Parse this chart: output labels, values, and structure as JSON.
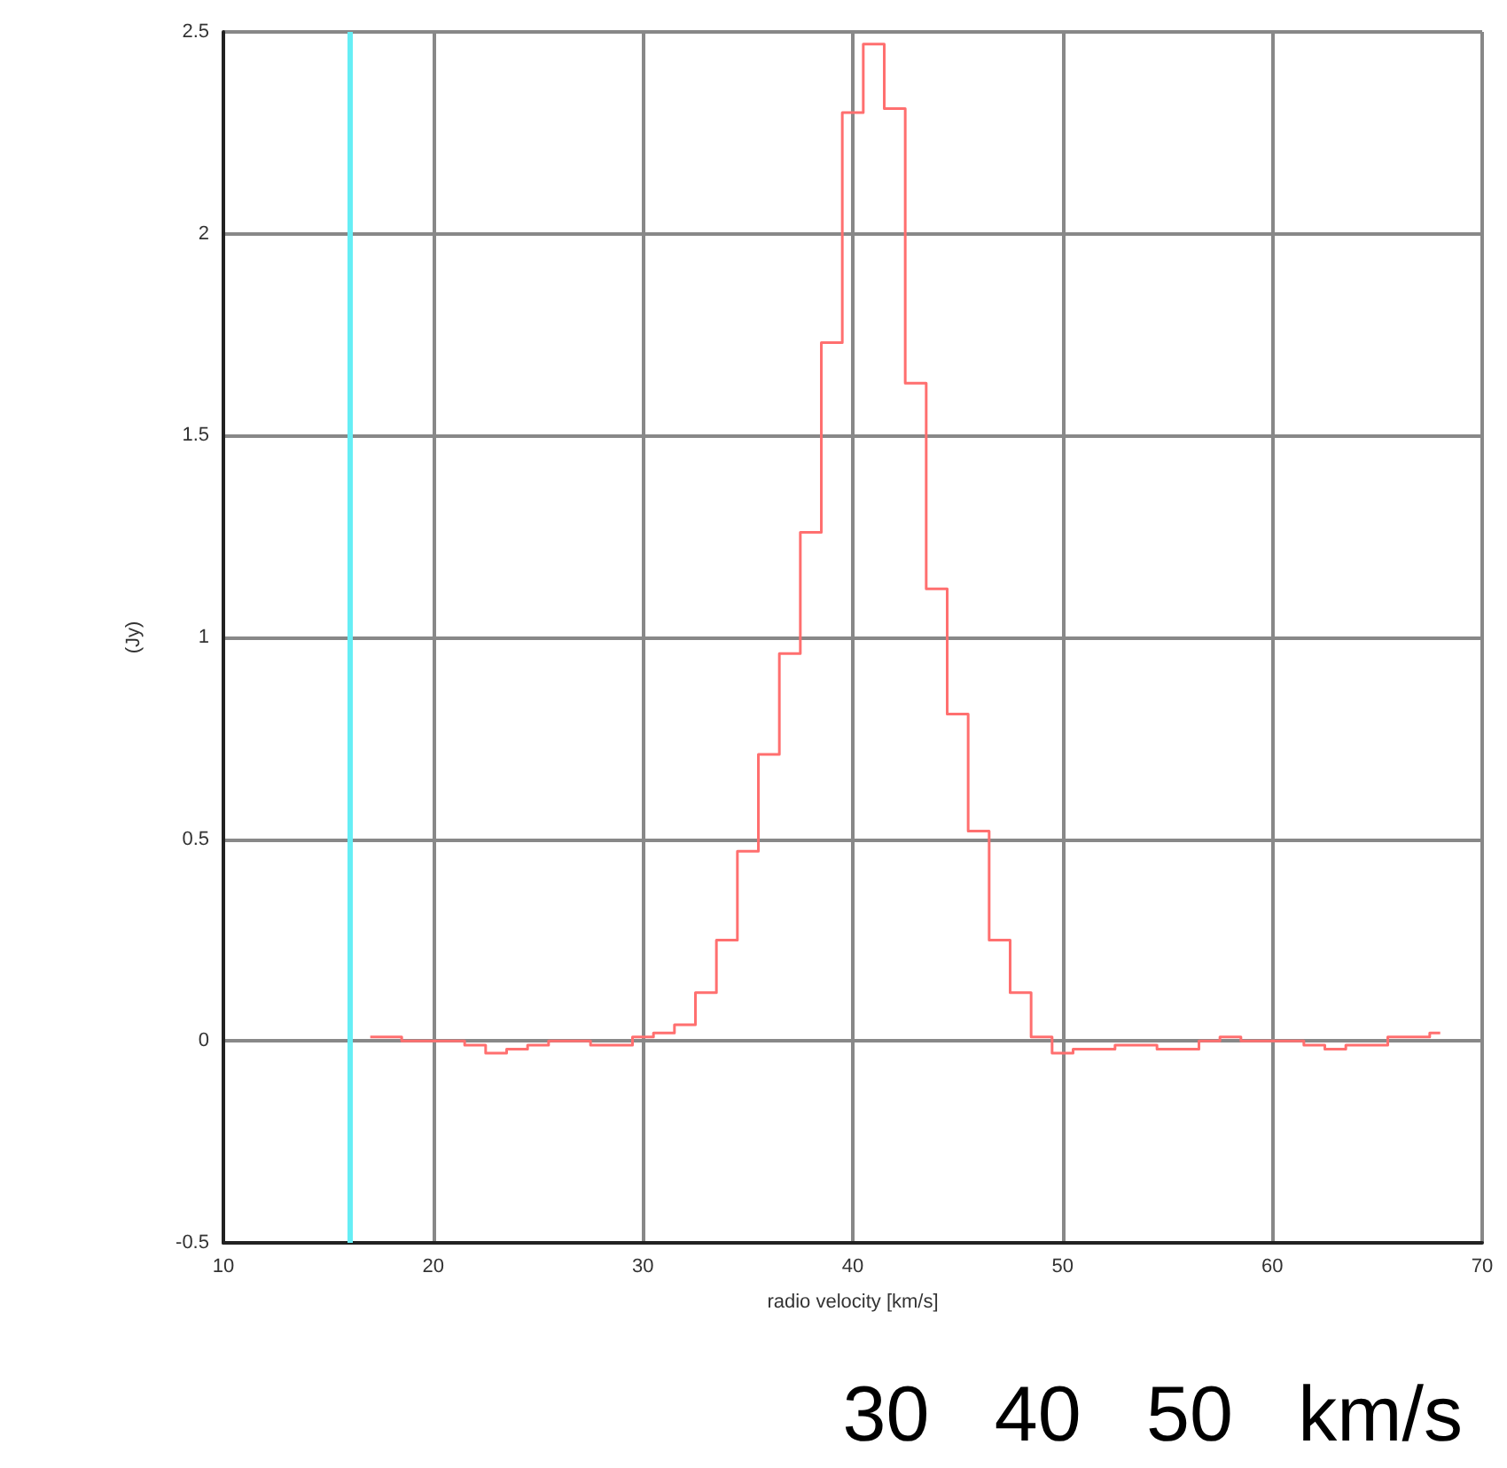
{
  "chart_data": {
    "type": "step",
    "xlabel": "radio velocity [km/s]",
    "ylabel": "(Jy)",
    "xlim": [
      10,
      70
    ],
    "xticks": [
      10,
      20,
      30,
      40,
      50,
      60,
      70
    ],
    "ylim": [
      -0.5,
      2.5
    ],
    "yticks": [
      -0.5,
      0,
      0.5,
      1,
      1.5,
      2,
      2.5
    ],
    "grid": true,
    "marker": "none",
    "line_style": "solid",
    "x": [
      17,
      18,
      19,
      20,
      21,
      22,
      23,
      24,
      25,
      26,
      27,
      28,
      29,
      30,
      31,
      32,
      33,
      34,
      35,
      36,
      37,
      38,
      39,
      40,
      41,
      42,
      43,
      44,
      45,
      46,
      47,
      48,
      49,
      50,
      51,
      52,
      53,
      54,
      55,
      56,
      57,
      58,
      59,
      60,
      61,
      62,
      63,
      64,
      65,
      66,
      67,
      68
    ],
    "series": [
      {
        "color": "#ff6f6f",
        "values": [
          0.01,
          0.01,
          0.0,
          0.0,
          0.0,
          -0.01,
          -0.03,
          -0.02,
          -0.01,
          0.0,
          0.0,
          -0.01,
          -0.01,
          0.01,
          0.02,
          0.04,
          0.12,
          0.25,
          0.47,
          0.71,
          0.96,
          1.26,
          1.73,
          2.3,
          2.47,
          2.31,
          1.63,
          1.12,
          0.81,
          0.52,
          0.25,
          0.12,
          0.01,
          -0.03,
          -0.02,
          -0.02,
          -0.01,
          -0.01,
          -0.02,
          -0.02,
          0.0,
          0.01,
          0.0,
          0.0,
          0.0,
          -0.01,
          -0.02,
          -0.01,
          -0.01,
          0.01,
          0.01,
          0.02
        ]
      }
    ],
    "ref_lines": [
      {
        "axis": "x",
        "value": 16,
        "color": "#66eef5",
        "line_style": "solid"
      }
    ],
    "annotations": [
      "30   40   50   km/s"
    ]
  }
}
